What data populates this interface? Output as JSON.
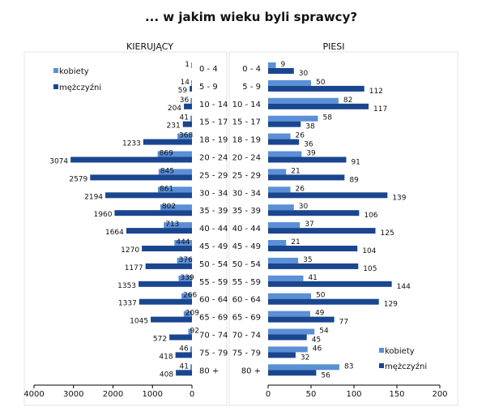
{
  "title": "... w jakim wieku byli sprawcy?",
  "colors": {
    "kobiety": "#5b8fd6",
    "mezczyzni": "#1a4690"
  },
  "chart_data": [
    {
      "type": "bar",
      "orientation": "horizontal-reversed",
      "title": "KIERUJĄCY",
      "categories": [
        "0 - 4",
        "5 - 9",
        "10 - 14",
        "15 - 17",
        "18 - 19",
        "20 - 24",
        "25 - 29",
        "30 - 34",
        "35 - 39",
        "40 - 44",
        "45 - 49",
        "50 - 54",
        "55 - 59",
        "60 - 64",
        "65 - 69",
        "70 - 74",
        "75 - 79",
        "80 +"
      ],
      "series": [
        {
          "name": "kobiety",
          "values": [
            1,
            14,
            36,
            41,
            368,
            869,
            845,
            861,
            802,
            713,
            444,
            376,
            339,
            266,
            209,
            92,
            46,
            41
          ]
        },
        {
          "name": "mężczyźni",
          "values": [
            null,
            59,
            204,
            231,
            1233,
            3074,
            2579,
            2194,
            1960,
            1664,
            1270,
            1177,
            1353,
            1337,
            1045,
            572,
            418,
            408
          ]
        }
      ],
      "xlim": [
        0,
        4000
      ],
      "xticks": [
        "4000",
        "3000",
        "2000",
        "1000",
        "0"
      ],
      "legend": "top-left"
    },
    {
      "type": "bar",
      "orientation": "horizontal",
      "title": "PIESI",
      "categories": [
        "0 - 4",
        "5 - 9",
        "10 - 14",
        "15 - 17",
        "18 - 19",
        "20 - 24",
        "25 - 29",
        "30 - 34",
        "35 - 39",
        "40 - 44",
        "45 - 49",
        "50 - 54",
        "55 - 59",
        "60 - 64",
        "65 - 69",
        "70 - 74",
        "75 - 79",
        "80 +"
      ],
      "series": [
        {
          "name": "kobiety",
          "values": [
            9,
            50,
            82,
            58,
            26,
            39,
            21,
            26,
            30,
            37,
            21,
            35,
            41,
            50,
            49,
            54,
            46,
            83
          ]
        },
        {
          "name": "mężczyźni",
          "values": [
            30,
            112,
            117,
            38,
            36,
            91,
            89,
            139,
            106,
            125,
            104,
            105,
            144,
            129,
            77,
            45,
            32,
            56
          ]
        }
      ],
      "xlim": [
        0,
        200
      ],
      "xticks": [
        "0",
        "50",
        "100",
        "150",
        "200"
      ],
      "legend": "bottom-right"
    }
  ]
}
